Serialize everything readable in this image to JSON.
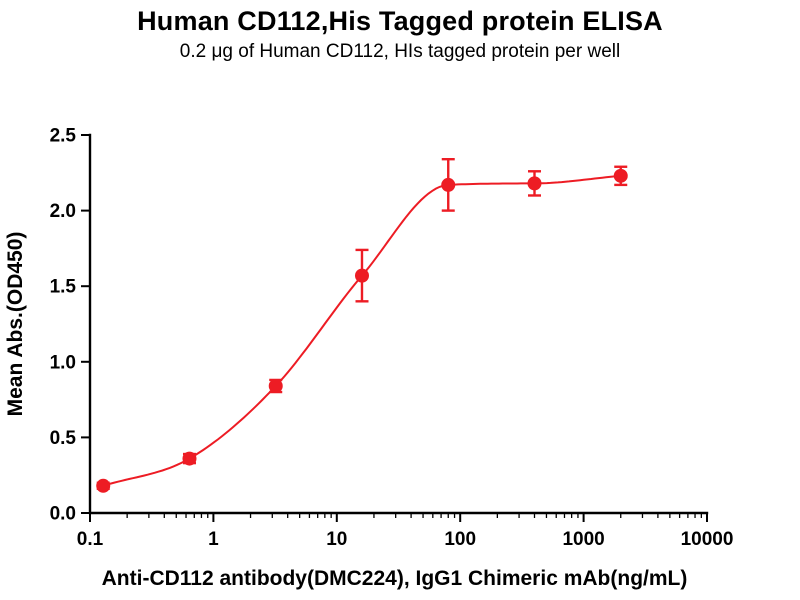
{
  "chart_data": {
    "type": "scatter",
    "title": "Human CD112,His Tagged protein ELISA",
    "subtitle": "0.2 μg of Human CD112, HIs tagged protein per well",
    "xlabel": "Anti-CD112 antibody(DMC224), IgG1 Chimeric mAb(ng/mL)",
    "ylabel": "Mean Abs.(OD450)",
    "x_scale": "log10",
    "xlim": [
      0.1,
      10000
    ],
    "ylim": [
      0,
      2.5
    ],
    "x_ticks": [
      0.1,
      1,
      10,
      100,
      1000,
      10000
    ],
    "x_tick_labels": [
      "0.1",
      "1",
      "10",
      "100",
      "1000",
      "10000"
    ],
    "y_ticks": [
      0,
      0.5,
      1,
      1.5,
      2,
      2.5
    ],
    "y_tick_labels": [
      "0.0",
      "0.5",
      "1.0",
      "1.5",
      "2.0",
      "2.5"
    ],
    "grid": false,
    "legend": false,
    "series": [
      {
        "name": "Anti-CD112 antibody (DMC224)",
        "color": "#ED1C24",
        "marker": "circle",
        "line": "sigmoid-fit",
        "x": [
          0.128,
          0.64,
          3.2,
          16,
          80,
          400,
          2000
        ],
        "y": [
          0.18,
          0.36,
          0.84,
          1.57,
          2.17,
          2.18,
          2.23
        ],
        "yerr": [
          0.02,
          0.03,
          0.04,
          0.17,
          0.17,
          0.08,
          0.06
        ]
      }
    ]
  }
}
